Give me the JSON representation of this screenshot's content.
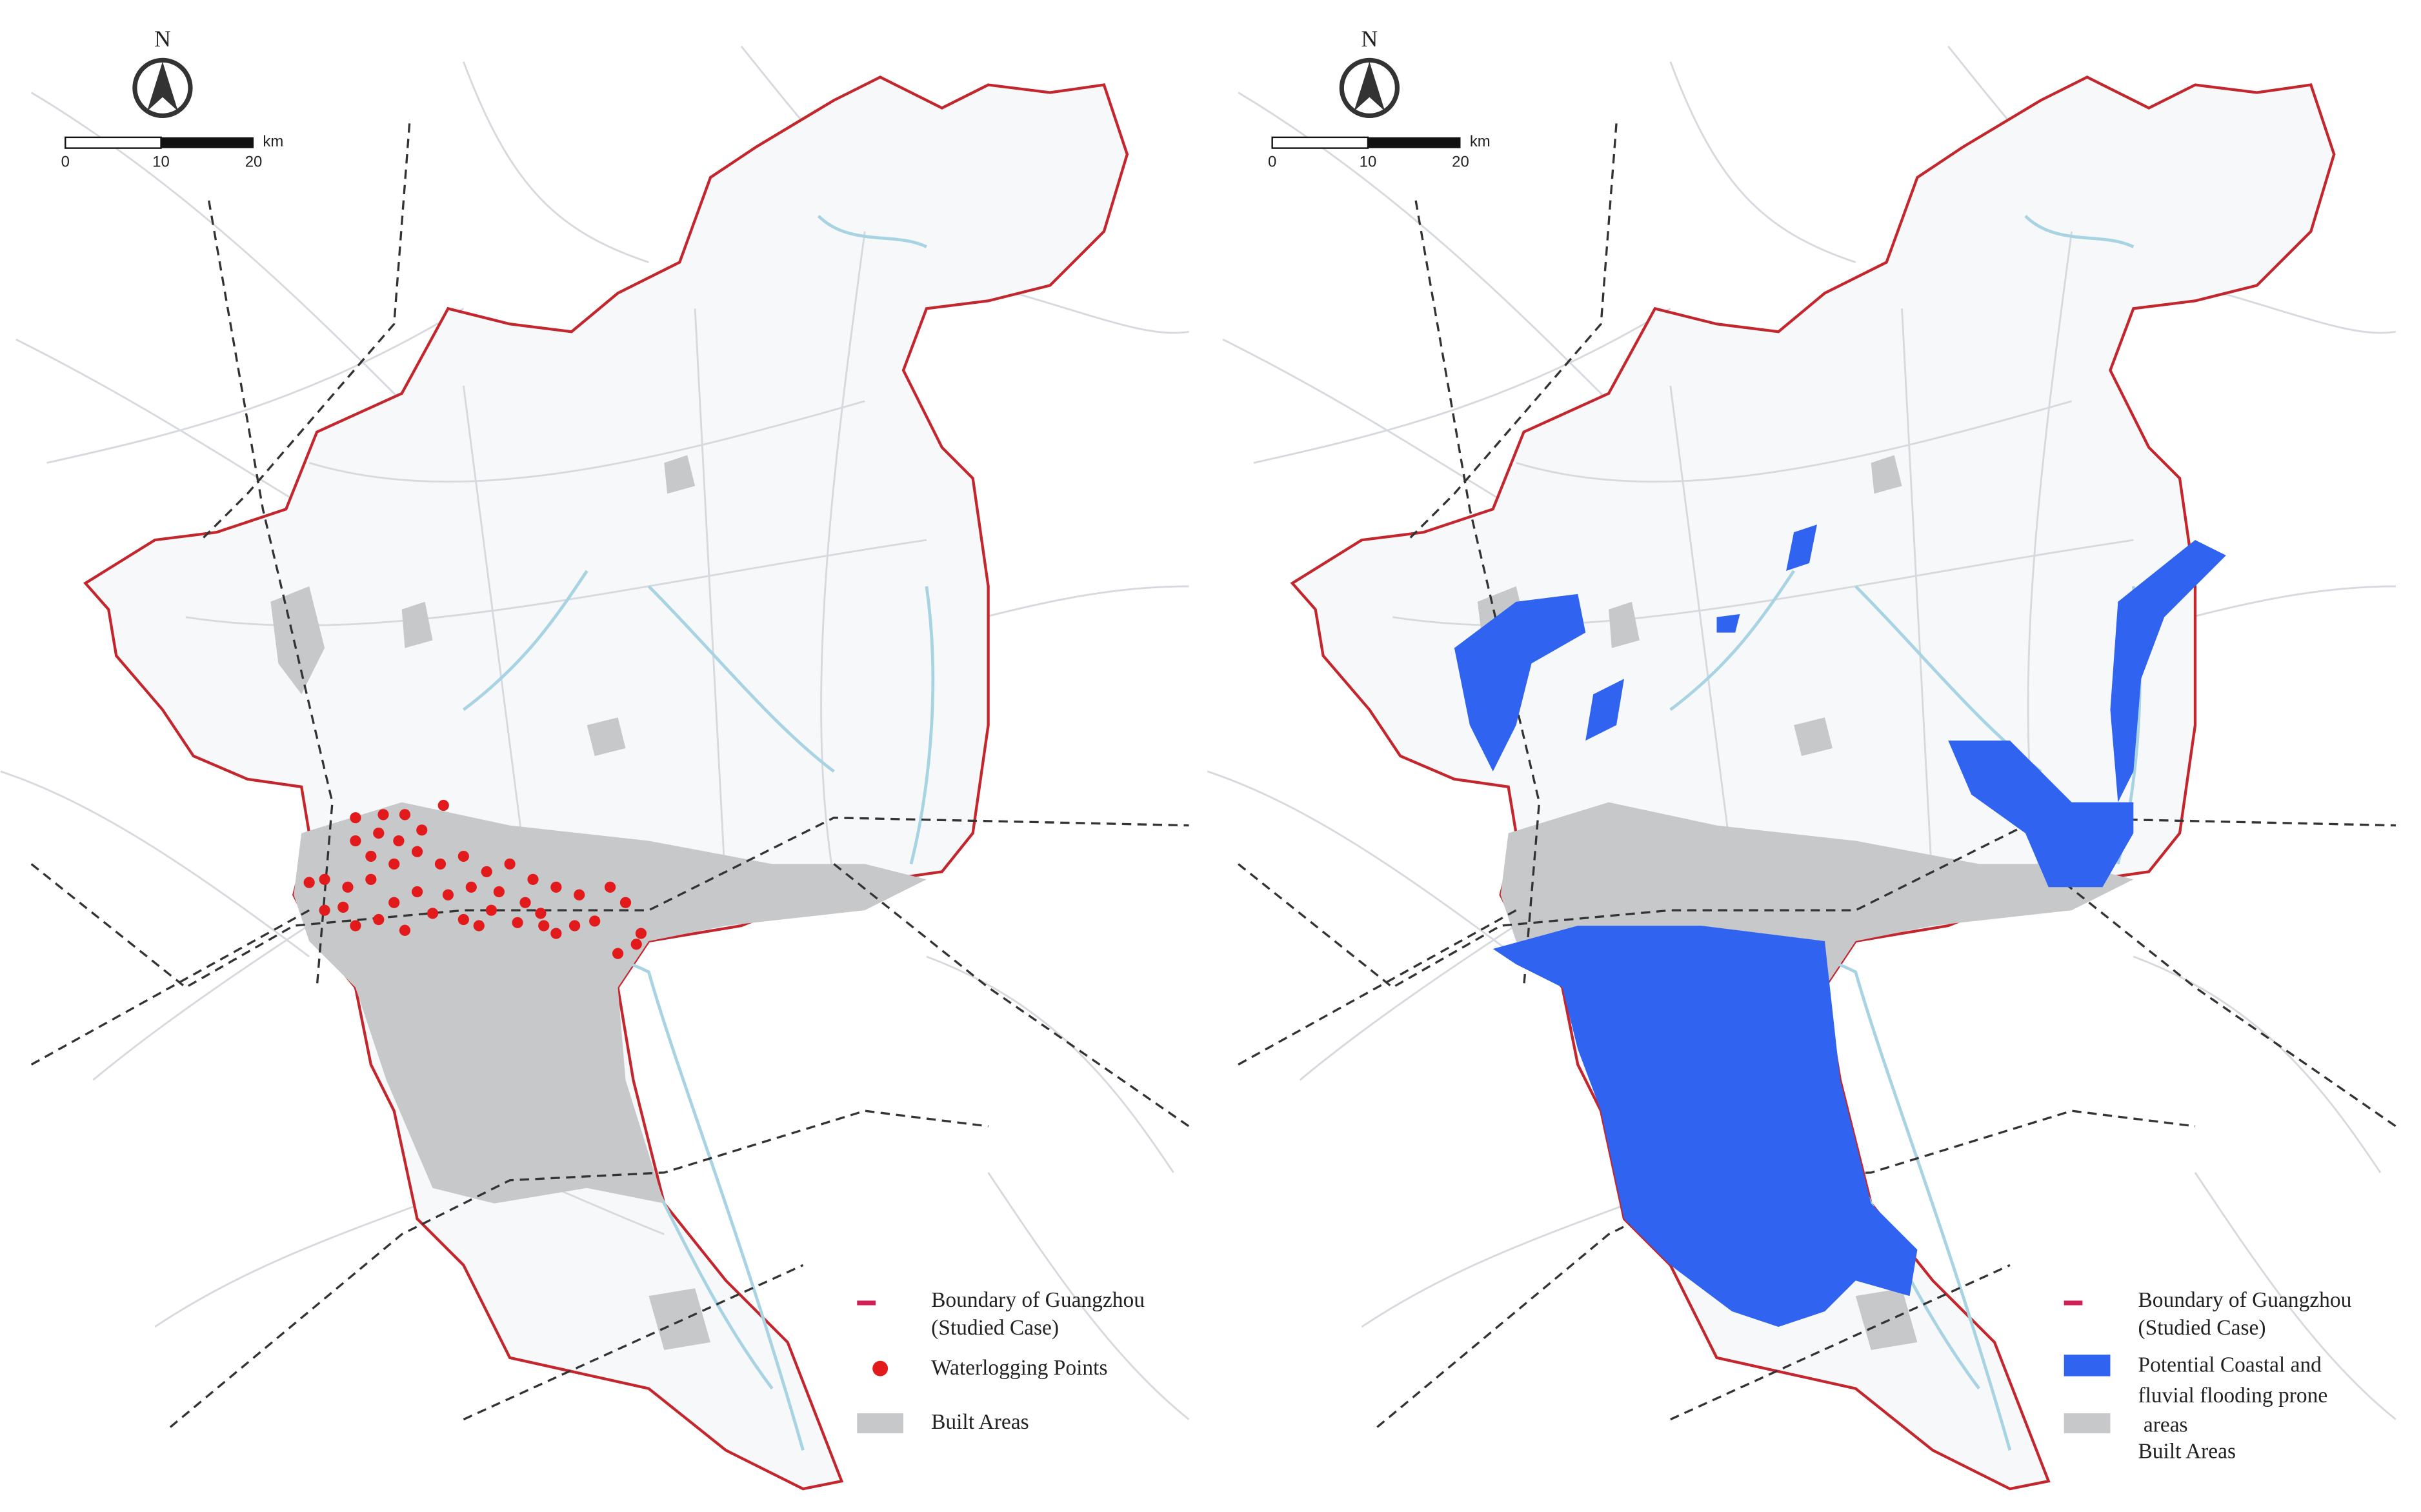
{
  "maps": [
    {
      "north": "N",
      "scale_bar": {
        "ticks": [
          "0",
          "10",
          "20"
        ],
        "unit": "km"
      },
      "legend": [
        {
          "lines": [
            "Boundary of Guangzhou",
            "(Studied Case)"
          ]
        },
        {
          "lines": [
            "Waterlogging Points"
          ]
        },
        {
          "lines": [
            "Built Areas"
          ]
        }
      ]
    },
    {
      "north": "N",
      "scale_bar": {
        "ticks": [
          "0",
          "10",
          "20"
        ],
        "unit": "km"
      },
      "legend": [
        {
          "lines": [
            "Boundary of Guangzhou",
            "(Studied Case)"
          ]
        },
        {
          "lines": [
            "Potential Coastal and",
            "fluvial flooding prone",
            " areas"
          ]
        },
        {
          "lines": [
            "Built Areas"
          ]
        }
      ]
    }
  ]
}
